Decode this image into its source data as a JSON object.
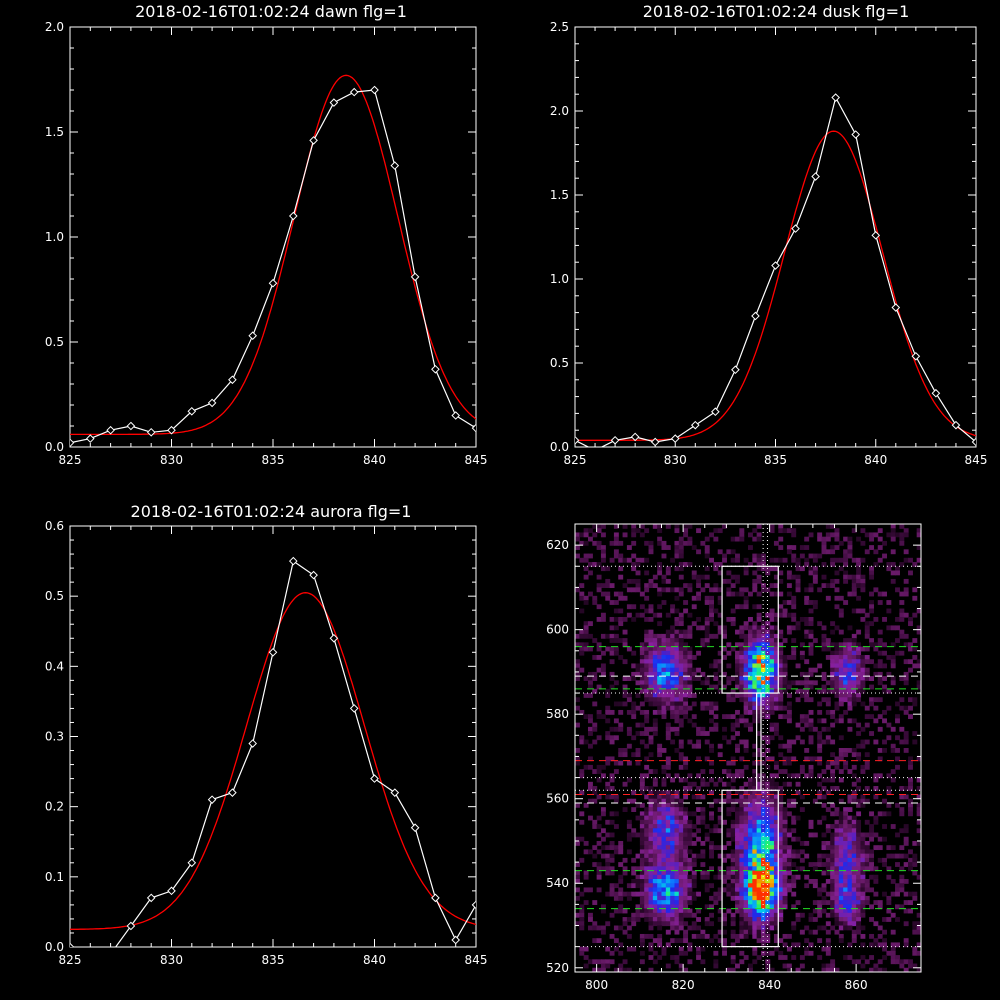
{
  "chart_data": [
    {
      "type": "line",
      "title": "2018-02-16T01:02:24 dawn flg=1",
      "xlim": [
        825,
        845
      ],
      "ylim": [
        0,
        2.0
      ],
      "xticks": [
        825,
        830,
        835,
        840,
        845
      ],
      "yticks": [
        0.0,
        0.5,
        1.0,
        1.5,
        2.0
      ],
      "ytick_labels": [
        "0.0",
        "0.5",
        "1.0",
        "1.5",
        "2.0"
      ],
      "series": [
        {
          "role": "measured",
          "color": "#ffffff",
          "marker": "diamond",
          "x": [
            825,
            826,
            827,
            828,
            829,
            830,
            831,
            832,
            833,
            834,
            835,
            836,
            837,
            838,
            839,
            840,
            841,
            842,
            843,
            844,
            845
          ],
          "y": [
            0.02,
            0.04,
            0.08,
            0.1,
            0.07,
            0.08,
            0.17,
            0.21,
            0.32,
            0.53,
            0.78,
            1.1,
            1.46,
            1.64,
            1.69,
            1.7,
            1.34,
            0.81,
            0.37,
            0.15,
            0.09
          ]
        },
        {
          "role": "fit",
          "color": "#ff0000",
          "kind": "gaussian",
          "amp": 1.71,
          "mu": 838.6,
          "sigma": 2.55,
          "offset": 0.06
        }
      ]
    },
    {
      "type": "line",
      "title": "2018-02-16T01:02:24 dusk flg=1",
      "xlim": [
        825,
        845
      ],
      "ylim": [
        0,
        2.5
      ],
      "xticks": [
        825,
        830,
        835,
        840,
        845
      ],
      "yticks": [
        0.0,
        0.5,
        1.0,
        1.5,
        2.0,
        2.5
      ],
      "ytick_labels": [
        "0.0",
        "0.5",
        "1.0",
        "1.5",
        "2.0",
        "2.5"
      ],
      "series": [
        {
          "role": "measured",
          "color": "#ffffff",
          "marker": "diamond",
          "x": [
            825,
            826,
            827,
            828,
            829,
            830,
            831,
            832,
            833,
            834,
            835,
            836,
            837,
            838,
            839,
            840,
            841,
            842,
            843,
            844,
            845
          ],
          "y": [
            0.04,
            -0.02,
            0.04,
            0.06,
            0.03,
            0.05,
            0.13,
            0.21,
            0.46,
            0.78,
            1.08,
            1.3,
            1.61,
            2.08,
            1.86,
            1.26,
            0.83,
            0.54,
            0.32,
            0.13,
            0.03
          ]
        },
        {
          "role": "fit",
          "color": "#ff0000",
          "kind": "gaussian",
          "amp": 1.84,
          "mu": 837.9,
          "sigma": 2.45,
          "offset": 0.04
        }
      ]
    },
    {
      "type": "line",
      "title": "2018-02-16T01:02:24 aurora flg=1",
      "xlim": [
        825,
        845
      ],
      "ylim": [
        0,
        0.6
      ],
      "xticks": [
        825,
        830,
        835,
        840,
        845
      ],
      "yticks": [
        0.0,
        0.1,
        0.2,
        0.3,
        0.4,
        0.5,
        0.6
      ],
      "ytick_labels": [
        "0.0",
        "0.1",
        "0.2",
        "0.3",
        "0.4",
        "0.5",
        "0.6"
      ],
      "series": [
        {
          "role": "measured",
          "color": "#ffffff",
          "marker": "diamond",
          "x": [
            825,
            826,
            827,
            828,
            829,
            830,
            831,
            832,
            833,
            834,
            835,
            836,
            837,
            838,
            839,
            840,
            841,
            842,
            843,
            844,
            845
          ],
          "y": [
            0.0,
            -0.01,
            -0.01,
            0.03,
            0.07,
            0.08,
            0.12,
            0.21,
            0.22,
            0.29,
            0.42,
            0.55,
            0.53,
            0.44,
            0.34,
            0.24,
            0.22,
            0.17,
            0.07,
            0.01,
            0.06
          ]
        },
        {
          "role": "fit",
          "color": "#ff0000",
          "kind": "gaussian",
          "amp": 0.48,
          "mu": 836.6,
          "sigma": 2.9,
          "offset": 0.025
        }
      ]
    },
    {
      "type": "heatmap",
      "xlim": [
        795,
        875
      ],
      "ylim": [
        519,
        625
      ],
      "xticks": [
        800,
        820,
        840,
        860
      ],
      "yticks": [
        520,
        540,
        560,
        580,
        600,
        620
      ],
      "colormap": [
        "#000000",
        "#3a0a3a",
        "#6b1b6b",
        "#8a20a0",
        "#4a20c8",
        "#1a2cf0",
        "#0c7cff",
        "#00d8e8",
        "#20f070",
        "#e8f000",
        "#ff3000"
      ],
      "blobs": [
        {
          "x": 816,
          "y": 590,
          "sx": 3.0,
          "sy": 4.5,
          "amp": 0.6
        },
        {
          "x": 838,
          "y": 590,
          "sx": 2.5,
          "sy": 5.0,
          "amp": 1.0
        },
        {
          "x": 858,
          "y": 590,
          "sx": 2.2,
          "sy": 4.0,
          "amp": 0.45
        },
        {
          "x": 816,
          "y": 552,
          "sx": 3.0,
          "sy": 5.0,
          "amp": 0.45
        },
        {
          "x": 816,
          "y": 538,
          "sx": 3.0,
          "sy": 4.0,
          "amp": 0.7
        },
        {
          "x": 838,
          "y": 548,
          "sx": 3.0,
          "sy": 8.0,
          "amp": 0.75
        },
        {
          "x": 838,
          "y": 538,
          "sx": 2.5,
          "sy": 4.0,
          "amp": 1.0
        },
        {
          "x": 858,
          "y": 545,
          "sx": 2.5,
          "sy": 6.0,
          "amp": 0.4
        },
        {
          "x": 858,
          "y": 535,
          "sx": 2.0,
          "sy": 3.0,
          "amp": 0.4
        }
      ],
      "boxes": [
        {
          "x0": 829,
          "x1": 842,
          "y0": 585,
          "y1": 615
        },
        {
          "x0": 829,
          "x1": 842,
          "y0": 525,
          "y1": 562
        },
        {
          "x0": 837,
          "x1": 838,
          "y0": 562,
          "y1": 585
        }
      ],
      "dotted_hlines": [
        615,
        585,
        565,
        562,
        525
      ],
      "dotted_vlines": [
        838.5,
        839.5
      ],
      "green_dashed_hlines": [
        596,
        586,
        543,
        534
      ],
      "white_dashed_hlines": [
        589,
        559
      ],
      "red_dashed_hlines": [
        569,
        561
      ]
    }
  ]
}
